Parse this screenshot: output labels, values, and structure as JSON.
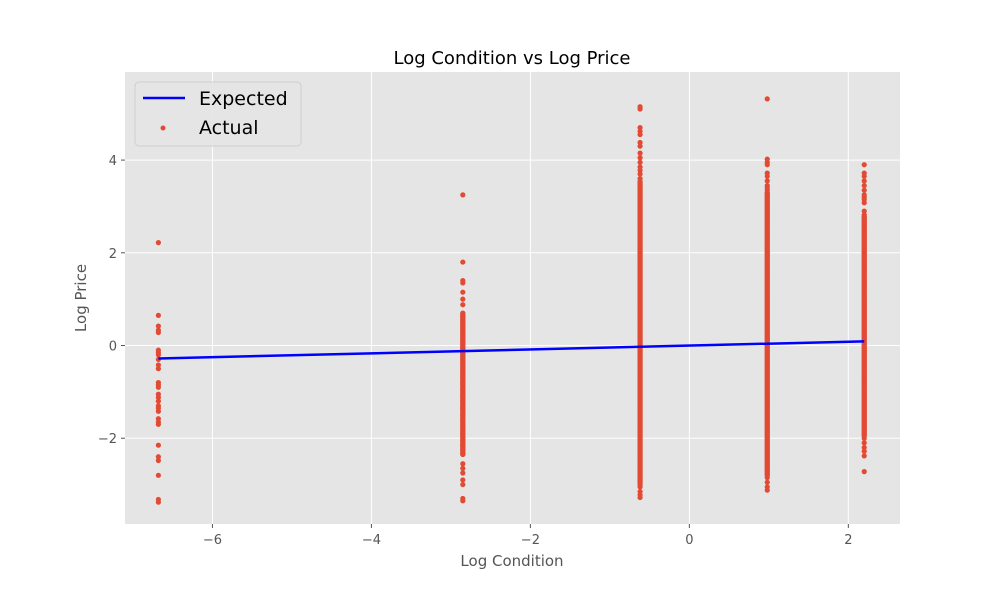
{
  "chart_data": {
    "type": "scatter",
    "title": "Log Condition vs Log Price",
    "xlabel": "Log Condition",
    "ylabel": "Log Price",
    "xlim": [
      -7.1,
      2.65
    ],
    "ylim": [
      -3.85,
      5.9
    ],
    "x_ticks": [
      -6,
      -4,
      -2,
      0,
      2
    ],
    "y_ticks": [
      -2,
      0,
      2,
      4
    ],
    "x_tick_labels": [
      "−6",
      "−4",
      "−2",
      "0",
      "2"
    ],
    "y_tick_labels": [
      "−2",
      "0",
      "2",
      "4"
    ],
    "grid": true,
    "legend_position": "top-left",
    "series": [
      {
        "name": "Expected",
        "kind": "line",
        "color": "#0000ff",
        "x": [
          -6.68,
          2.2
        ],
        "y": [
          -0.28,
          0.09
        ]
      },
      {
        "name": "Actual",
        "kind": "scatter",
        "color": "#e24a33",
        "groups": [
          {
            "x": -6.68,
            "y": [
              2.22,
              0.65,
              0.42,
              0.33,
              0.28,
              -0.1,
              -0.15,
              -0.2,
              -0.3,
              -0.42,
              -0.5,
              -0.8,
              -0.85,
              -0.9,
              -1.05,
              -1.12,
              -1.2,
              -1.3,
              -1.35,
              -1.42,
              -1.58,
              -1.65,
              -1.7,
              -2.15,
              -2.4,
              -2.48,
              -2.8,
              -3.32,
              -3.38
            ]
          },
          {
            "x": -2.85,
            "y": [
              3.25,
              1.8,
              1.4,
              1.35,
              1.15,
              1.0,
              0.88,
              0.7,
              0.62,
              0.55,
              0.45,
              0.38,
              0.3,
              0.2,
              0.12,
              0.02,
              -0.05,
              -0.18,
              -0.3,
              -0.42,
              -0.55,
              -0.7,
              -0.82,
              -0.95,
              -1.1,
              -1.2,
              -1.35,
              -1.5,
              -1.62,
              -1.75,
              -1.9,
              -2.05,
              -2.15,
              -2.25,
              -2.35,
              -2.55,
              -2.65,
              -2.75,
              -2.9,
              -3.0,
              -3.3,
              -3.35
            ],
            "fill_range": [
              -2.35,
              0.7
            ]
          },
          {
            "x": -0.62,
            "y": [
              5.15,
              5.1,
              4.7,
              4.62,
              4.55,
              4.38,
              4.3,
              4.15,
              4.05,
              3.95,
              3.85,
              3.78,
              3.7,
              3.6,
              -3.05,
              -3.15,
              -3.22,
              -3.28
            ],
            "fill_range": [
              -3.0,
              3.55
            ]
          },
          {
            "x": 0.98,
            "y": [
              5.32,
              4.02,
              3.95,
              3.9,
              3.72,
              3.65,
              3.55,
              3.45,
              3.4,
              3.35,
              -2.85,
              -2.95,
              -3.05,
              -3.12
            ],
            "fill_range": [
              -2.8,
              3.3
            ]
          },
          {
            "x": 2.2,
            "y": [
              3.9,
              3.72,
              3.65,
              3.55,
              3.45,
              3.35,
              3.25,
              3.2,
              3.15,
              3.08,
              2.9,
              2.82,
              -2.0,
              -2.1,
              -2.2,
              -2.28,
              -2.38,
              -2.72
            ],
            "fill_range": [
              -1.95,
              2.8
            ]
          }
        ]
      }
    ]
  }
}
